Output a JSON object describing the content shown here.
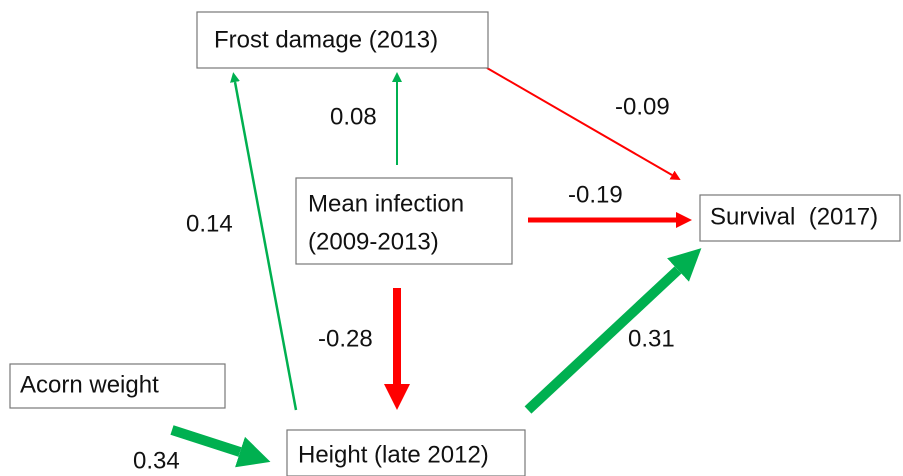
{
  "nodes": [
    {
      "label": "Frost damage (2013)"
    },
    {
      "label": [
        "Mean infection",
        "(2009-2013)"
      ]
    },
    {
      "label": "Survival  (2017)"
    },
    {
      "label": "Acorn weight"
    },
    {
      "label": "Height (late 2012)"
    }
  ],
  "edges": [
    {
      "label": "0.08"
    },
    {
      "label": "-0.09"
    },
    {
      "label": "-0.19"
    },
    {
      "label": "0.14"
    },
    {
      "label": "-0.28"
    },
    {
      "label": "0.31"
    },
    {
      "label": "0.34"
    }
  ]
}
